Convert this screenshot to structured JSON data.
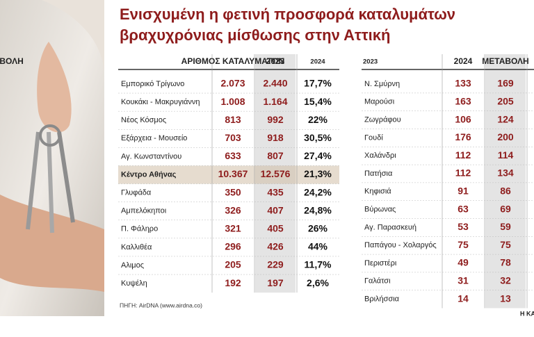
{
  "title": [
    "Ενισχυμένη η φετινή προσφορά καταλυμάτων",
    "βραχυχρόνιας μίσθωσης στην Αττική"
  ],
  "left_table": {
    "headers": [
      "ΑΡΙΘΜΟΣ ΚΑΤΑΛΥΜΑΤΩΝ",
      "2023",
      "2024",
      "ΜΕΤΑΒΟΛΗ"
    ],
    "highlight_row": 5,
    "rows": [
      [
        "Εμπορικό Τρίγωνο",
        "2.073",
        "2.440",
        "17,7%"
      ],
      [
        "Κουκάκι - Μακρυγιάννη",
        "1.008",
        "1.164",
        "15,4%"
      ],
      [
        "Νέος Κόσμος",
        "813",
        "992",
        "22%"
      ],
      [
        "Εξάρχεια - Μουσείο",
        "703",
        "918",
        "30,5%"
      ],
      [
        "Αγ. Κωνσταντίνου",
        "633",
        "807",
        "27,4%"
      ],
      [
        "Κέντρο Αθήνας",
        "10.367",
        "12.576",
        "21,3%"
      ],
      [
        "Γλυφάδα",
        "350",
        "435",
        "24,2%"
      ],
      [
        "Αμπελόκηποι",
        "326",
        "407",
        "24,8%"
      ],
      [
        "Π. Φάληρο",
        "321",
        "405",
        "26%"
      ],
      [
        "Καλλιθέα",
        "296",
        "426",
        "44%"
      ],
      [
        "Αλιμος",
        "205",
        "229",
        "11,7%"
      ],
      [
        "Κυψέλη",
        "192",
        "197",
        "2,6%"
      ]
    ]
  },
  "right_table": {
    "headers": [
      "2023",
      "2024",
      "ΜΕΤΑΒΟΛΗ"
    ],
    "rows": [
      [
        "Ν. Σμύρνη",
        "133",
        "169"
      ],
      [
        "Μαρούσι",
        "163",
        "205"
      ],
      [
        "Ζωγράφου",
        "106",
        "124"
      ],
      [
        "Γουδί",
        "176",
        "200"
      ],
      [
        "Χαλάνδρι",
        "112",
        "114"
      ],
      [
        "Πατήσια",
        "112",
        "134"
      ],
      [
        "Κηφισιά",
        "91",
        "86"
      ],
      [
        "Βύρωνας",
        "63",
        "69"
      ],
      [
        "Αγ. Παρασκευή",
        "53",
        "59"
      ],
      [
        "Παπάγου - Χολαργός",
        "75",
        "75"
      ],
      [
        "Περιστέρι",
        "49",
        "78"
      ],
      [
        "Γαλάτσι",
        "31",
        "32"
      ],
      [
        "Βριλήσσια",
        "14",
        "13"
      ]
    ]
  },
  "source": "ΠΗΓΗ: AirDNA (www.airdna.co)",
  "credit": "Η ΚΑΘΗΜΕΡΙΝΗ"
}
